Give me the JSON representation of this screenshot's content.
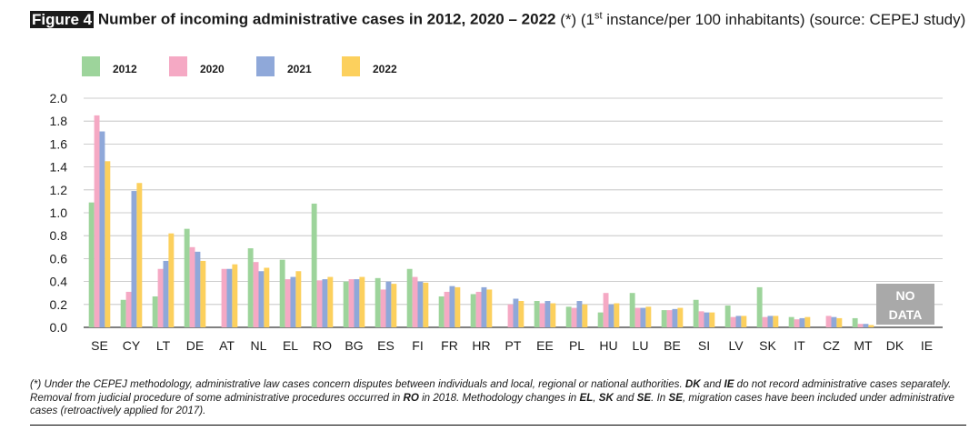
{
  "figure": {
    "label": "Figure 4",
    "title_bold": "Number of incoming administrative cases in 2012, 2020 – 2022",
    "title_pre": "(*) (1",
    "title_sup": "st",
    "title_post": " instance/per 100 inhabitants) (source: CEPEJ study)"
  },
  "footnote": {
    "parts": [
      "(*) Under the CEPEJ methodology, administrative law cases concern disputes between individuals and local, regional or national authorities. ",
      "DK",
      " and ",
      "IE",
      " do not record administrative cases separately. Removal from judicial procedure of some administrative procedures occurred in ",
      "RO",
      " in 2018. Methodology changes in ",
      "EL",
      ", ",
      "SK",
      " and ",
      "SE",
      ". In ",
      "SE",
      ", migration cases have been included under administrative cases (retroactively applied for 2017)."
    ]
  },
  "chart_data": {
    "type": "bar",
    "categories": [
      "SE",
      "CY",
      "LT",
      "DE",
      "AT",
      "NL",
      "EL",
      "RO",
      "BG",
      "ES",
      "FI",
      "FR",
      "HR",
      "PT",
      "EE",
      "PL",
      "HU",
      "LU",
      "BE",
      "SI",
      "LV",
      "SK",
      "IT",
      "CZ",
      "MT",
      "DK",
      "IE"
    ],
    "series": [
      {
        "name": "2012",
        "color": "#9dd49b",
        "values": [
          1.09,
          0.24,
          0.27,
          0.86,
          null,
          0.69,
          0.59,
          1.08,
          0.4,
          0.43,
          0.51,
          0.27,
          0.29,
          null,
          0.23,
          0.18,
          0.13,
          0.3,
          0.15,
          0.24,
          0.19,
          0.35,
          0.09,
          null,
          0.08,
          null,
          null
        ]
      },
      {
        "name": "2020",
        "color": "#f5a9c4",
        "values": [
          1.85,
          0.31,
          0.51,
          0.7,
          0.51,
          0.57,
          0.42,
          0.41,
          0.42,
          0.33,
          0.44,
          0.31,
          0.31,
          0.2,
          0.21,
          0.17,
          0.3,
          0.17,
          0.15,
          0.14,
          0.09,
          0.09,
          0.07,
          0.1,
          0.03,
          null,
          null
        ]
      },
      {
        "name": "2021",
        "color": "#8fa8d9",
        "values": [
          1.71,
          1.19,
          0.58,
          0.66,
          0.51,
          0.49,
          0.44,
          0.42,
          0.42,
          0.4,
          0.4,
          0.36,
          0.35,
          0.25,
          0.23,
          0.23,
          0.2,
          0.17,
          0.16,
          0.13,
          0.1,
          0.1,
          0.08,
          0.09,
          0.03,
          null,
          null
        ]
      },
      {
        "name": "2022",
        "color": "#fcd05d",
        "values": [
          1.45,
          1.26,
          0.82,
          0.58,
          0.55,
          0.52,
          0.49,
          0.44,
          0.44,
          0.38,
          0.39,
          0.35,
          0.33,
          0.23,
          0.21,
          0.2,
          0.21,
          0.18,
          0.17,
          0.13,
          0.1,
          0.1,
          0.09,
          0.08,
          0.02,
          null,
          null
        ]
      }
    ],
    "ylim": [
      0,
      2.0
    ],
    "yticks": [
      "0.0",
      "0.2",
      "0.4",
      "0.6",
      "0.8",
      "1.0",
      "1.2",
      "1.4",
      "1.6",
      "1.8",
      "2.0"
    ],
    "grid": true,
    "legend": "top-left",
    "annotation": {
      "line1": "NO",
      "line2": "DATA",
      "color": "#a9a9a9",
      "category": "DK"
    }
  }
}
